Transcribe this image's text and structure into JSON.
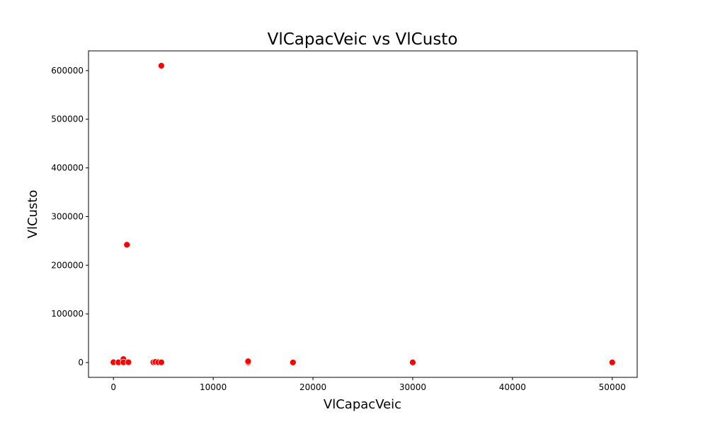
{
  "chart_data": {
    "type": "scatter",
    "title": "VlCapacVeic vs VlCusto",
    "xlabel": "VlCapacVeic",
    "ylabel": "VlCusto",
    "xlim": [
      -2500,
      52500
    ],
    "ylim": [
      -30500,
      640500
    ],
    "xticks": [
      0,
      10000,
      20000,
      30000,
      40000,
      50000
    ],
    "yticks": [
      0,
      100000,
      200000,
      300000,
      400000,
      500000,
      600000
    ],
    "grid": false,
    "point_color": "#ff0000",
    "points": [
      {
        "x": 0,
        "y": 500
      },
      {
        "x": 500,
        "y": 300
      },
      {
        "x": 1000,
        "y": 7000
      },
      {
        "x": 1000,
        "y": 400
      },
      {
        "x": 1500,
        "y": 600
      },
      {
        "x": 1350,
        "y": 242000
      },
      {
        "x": 4000,
        "y": 600
      },
      {
        "x": 4200,
        "y": 1200
      },
      {
        "x": 4500,
        "y": 500
      },
      {
        "x": 4800,
        "y": 610000
      },
      {
        "x": 4800,
        "y": 400
      },
      {
        "x": 13500,
        "y": 300
      },
      {
        "x": 13500,
        "y": 2500
      },
      {
        "x": 18000,
        "y": 200
      },
      {
        "x": 30000,
        "y": 300
      },
      {
        "x": 50000,
        "y": 300
      }
    ]
  }
}
